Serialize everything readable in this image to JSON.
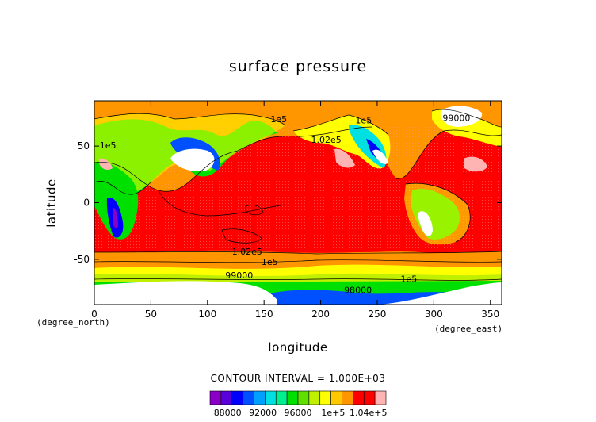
{
  "chart_data": {
    "type": "heatmap",
    "title": "surface pressure",
    "xlabel": "longitude",
    "ylabel": "latitude",
    "x_unit": "(degree_east)",
    "y_unit": "(degree_north)",
    "xlim": [
      0,
      360
    ],
    "ylim": [
      -90,
      90
    ],
    "x_ticks": [
      0,
      50,
      100,
      150,
      200,
      250,
      300,
      350
    ],
    "y_ticks": [
      -50,
      0,
      50
    ],
    "contour_interval_text": "CONTOUR INTERVAL = 1.000E+03",
    "colorbar": {
      "min": 86000,
      "max": 106000,
      "step": 1000,
      "tick_values": [
        88000,
        92000,
        96000,
        100000,
        104000
      ],
      "tick_labels": [
        "88000",
        "92000",
        "96000",
        "1e+5",
        "1.04e+5"
      ],
      "colors": [
        "#8a00c8",
        "#5a00d8",
        "#0000ff",
        "#0050ff",
        "#00a0ff",
        "#00e0e0",
        "#00f090",
        "#00e000",
        "#60e000",
        "#c0f000",
        "#ffff00",
        "#ffc800",
        "#ff9600",
        "#ff0000",
        "#ff0000",
        "#ffb4b4"
      ]
    },
    "contour_labels": [
      {
        "text": "1.02e5",
        "lon": 205,
        "lat": 53
      },
      {
        "text": "1e5",
        "lon": 163,
        "lat": 71
      },
      {
        "text": "1e5",
        "lon": 238,
        "lat": 70
      },
      {
        "text": "1e5",
        "lon": 12,
        "lat": 48
      },
      {
        "text": "1.02e5",
        "lon": 135,
        "lat": -46
      },
      {
        "text": "1e5",
        "lon": 155,
        "lat": -55
      },
      {
        "text": "1e5",
        "lon": 278,
        "lat": -70
      },
      {
        "text": "98000",
        "lon": 233,
        "lat": -80
      },
      {
        "text": "99000",
        "lon": 320,
        "lat": 72
      },
      {
        "text": "99000",
        "lon": 128,
        "lat": -67
      }
    ],
    "grid": false,
    "legend": "bottom"
  }
}
